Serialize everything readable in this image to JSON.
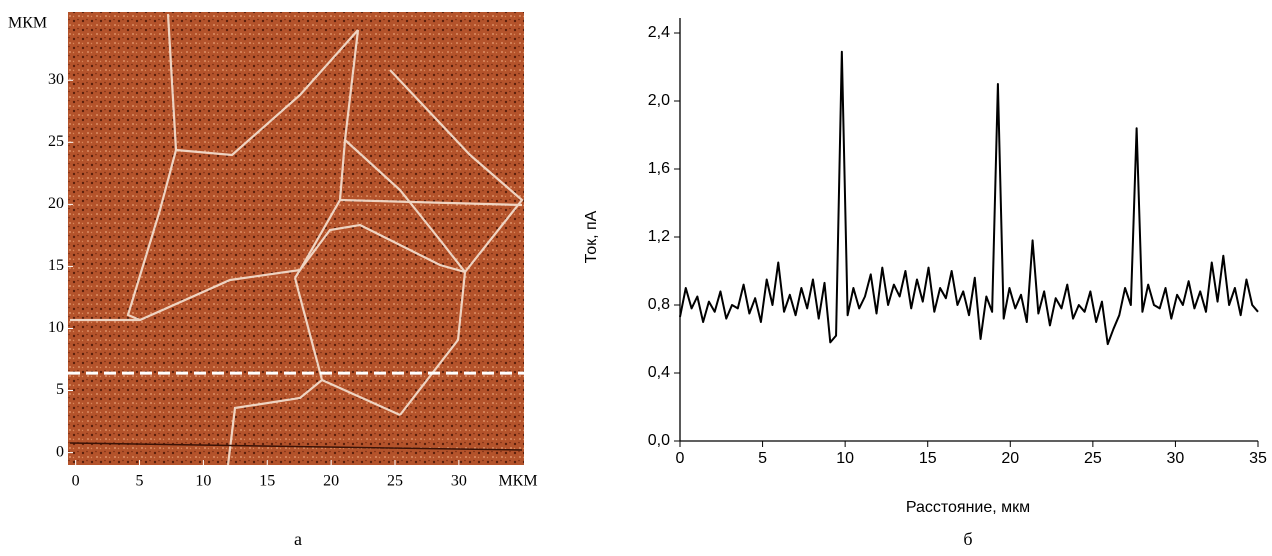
{
  "chart_data": [
    {
      "type": "image",
      "caption": "а",
      "xlabel": "МКМ",
      "ylabel": "МКМ",
      "xlim": [
        -0.6,
        35.1
      ],
      "ylim": [
        -1,
        35.5
      ],
      "xticks": [
        0,
        5,
        10,
        15,
        20,
        25,
        30
      ],
      "yticks": [
        0,
        5,
        10,
        15,
        20,
        25,
        30
      ],
      "scan_line_y": 6.4
    },
    {
      "type": "line",
      "caption": "б",
      "xlabel": "Расстояние, мкм",
      "ylabel": "Ток, пА",
      "xlim": [
        0,
        35
      ],
      "ylim": [
        0,
        2.4
      ],
      "xticks": [
        0,
        5,
        10,
        15,
        20,
        25,
        30,
        35
      ],
      "yticks": [
        {
          "value": 0,
          "label": "0,0"
        },
        {
          "value": 0.4,
          "label": "0,4"
        },
        {
          "value": 0.8,
          "label": "0,8"
        },
        {
          "value": 1.2,
          "label": "1,2"
        },
        {
          "value": 1.6,
          "label": "1,6"
        },
        {
          "value": 2.0,
          "label": "2,0"
        },
        {
          "value": 2.4,
          "label": "2,4"
        }
      ],
      "x": [
        0,
        0.35,
        0.7,
        1.05,
        1.4,
        1.75,
        2.1,
        2.45,
        2.8,
        3.15,
        3.5,
        3.85,
        4.2,
        4.55,
        4.9,
        5.25,
        5.6,
        5.95,
        6.3,
        6.65,
        7,
        7.35,
        7.7,
        8.05,
        8.4,
        8.75,
        9.1,
        9.45,
        9.8,
        10.15,
        10.5,
        10.85,
        11.2,
        11.55,
        11.9,
        12.25,
        12.6,
        12.95,
        13.3,
        13.65,
        14,
        14.35,
        14.7,
        15.05,
        15.4,
        15.75,
        16.1,
        16.45,
        16.8,
        17.15,
        17.5,
        17.85,
        18.2,
        18.55,
        18.9,
        19.25,
        19.6,
        19.95,
        20.3,
        20.65,
        21,
        21.35,
        21.7,
        22.05,
        22.4,
        22.75,
        23.1,
        23.45,
        23.8,
        24.15,
        24.5,
        24.85,
        25.2,
        25.55,
        25.9,
        26.25,
        26.6,
        26.95,
        27.3,
        27.65,
        28,
        28.35,
        28.7,
        29.05,
        29.4,
        29.75,
        30.1,
        30.45,
        30.8,
        31.15,
        31.5,
        31.85,
        32.2,
        32.55,
        32.9,
        33.25,
        33.6,
        33.95,
        34.3,
        34.65,
        35
      ],
      "series": [
        {
          "color": "#000000",
          "values": [
            0.73,
            0.9,
            0.78,
            0.85,
            0.7,
            0.82,
            0.76,
            0.88,
            0.72,
            0.8,
            0.78,
            0.92,
            0.75,
            0.84,
            0.7,
            0.95,
            0.8,
            1.05,
            0.76,
            0.86,
            0.74,
            0.9,
            0.78,
            0.95,
            0.72,
            0.93,
            0.58,
            0.62,
            2.29,
            0.74,
            0.9,
            0.78,
            0.85,
            0.98,
            0.75,
            1.02,
            0.8,
            0.92,
            0.85,
            1.0,
            0.78,
            0.95,
            0.82,
            1.02,
            0.76,
            0.9,
            0.84,
            1.0,
            0.8,
            0.88,
            0.74,
            0.96,
            0.6,
            0.85,
            0.76,
            2.1,
            0.72,
            0.9,
            0.78,
            0.86,
            0.7,
            1.18,
            0.75,
            0.88,
            0.68,
            0.84,
            0.78,
            0.92,
            0.72,
            0.8,
            0.76,
            0.88,
            0.7,
            0.82,
            0.57,
            0.66,
            0.74,
            0.9,
            0.8,
            1.84,
            0.76,
            0.92,
            0.8,
            0.78,
            0.9,
            0.72,
            0.86,
            0.8,
            0.94,
            0.78,
            0.88,
            0.76,
            1.05,
            0.82,
            1.09,
            0.8,
            0.9,
            0.74,
            0.95,
            0.8,
            0.76
          ]
        }
      ]
    }
  ]
}
